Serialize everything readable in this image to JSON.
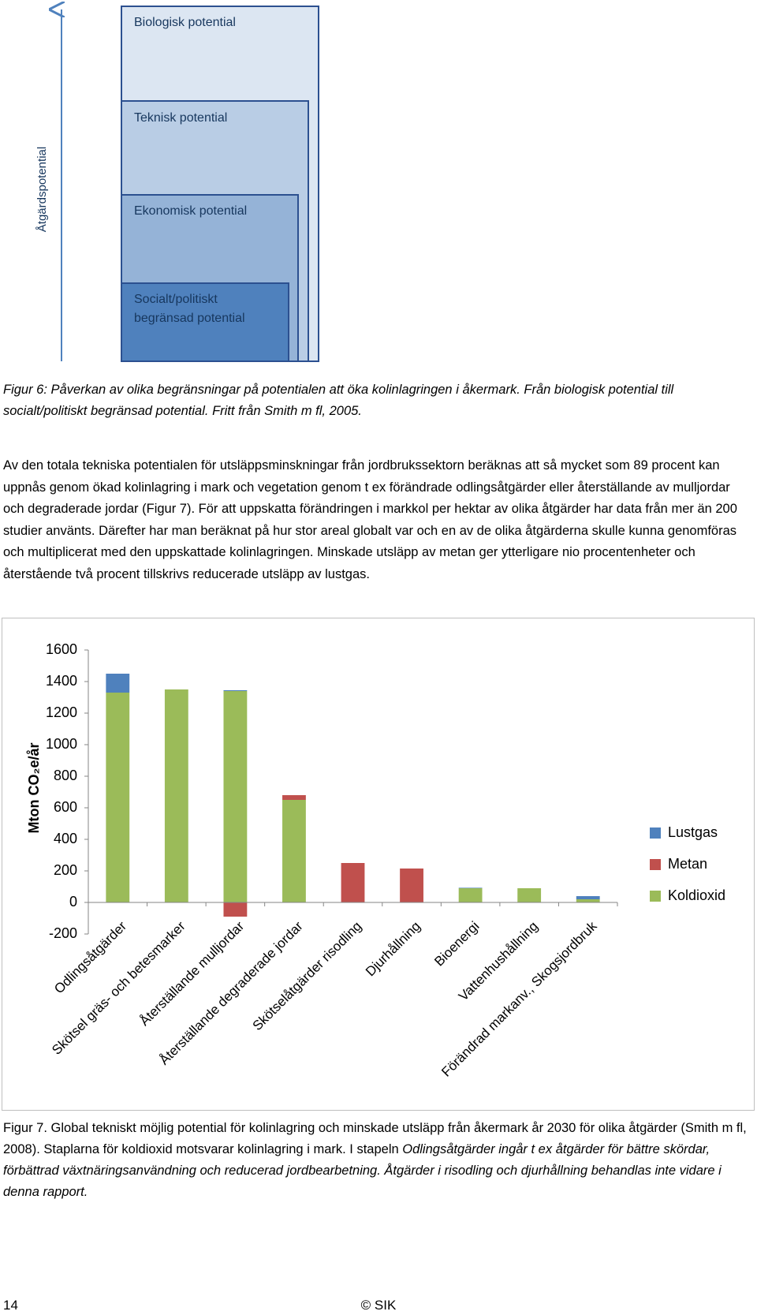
{
  "diagram": {
    "axis_label": "Åtgärdspotential",
    "boxes": [
      {
        "lines": [
          "Biologisk potential"
        ]
      },
      {
        "lines": [
          "Teknisk potential"
        ]
      },
      {
        "lines": [
          "Ekonomisk potential"
        ]
      },
      {
        "lines": [
          "Socialt/politiskt",
          "begränsad potential"
        ]
      }
    ]
  },
  "figure6_caption": "Figur 6: Påverkan av olika begränsningar på potentialen att öka kolinlagringen i åkermark. Från biologisk potential till socialt/politiskt begränsad potential. Fritt från Smith m fl, 2005.",
  "paragraph": "Av den totala tekniska potentialen för utsläppsminskningar från jordbrukssektorn beräknas att så mycket som 89 procent kan uppnås genom ökad kolinlagring i mark och vegetation genom t ex förändrade odlingsåtgärder eller återställande av mulljordar och degraderade jordar (Figur 7). För att uppskatta förändringen i markkol per hektar av olika åtgärder har data från mer än 200 studier använts. Därefter har man beräknat på hur stor areal globalt var och en av de olika åtgärderna skulle kunna genomföras och multiplicerat med den uppskattade kolinlagringen. Minskade utsläpp av metan ger ytterligare nio procentenheter och återstående två procent tillskrivs reducerade utsläpp av lustgas.",
  "chart_data": {
    "type": "stacked_bar",
    "y_label": "Mton CO₂e/år",
    "categories": [
      "Odlingsåtgärder",
      "Skötsel gräs- och betesmarker",
      "Återställande mulljordar",
      "Återställande degraderade jordar",
      "Skötselåtgärder risodling",
      "Djurhållning",
      "Bioenergi",
      "Vattenhushållning",
      "Förändrad markanv., Skogsjordbruk"
    ],
    "series": [
      {
        "name": "Koldioxid",
        "color": "#9bbb59",
        "values": [
          1330,
          1350,
          1340,
          650,
          0,
          0,
          90,
          90,
          20
        ]
      },
      {
        "name": "Metan",
        "color": "#c0504d",
        "values": [
          0,
          0,
          -90,
          30,
          250,
          215,
          0,
          0,
          0
        ]
      },
      {
        "name": "Lustgas",
        "color": "#4f81bd",
        "values": [
          120,
          0,
          5,
          0,
          0,
          0,
          3,
          0,
          20
        ]
      }
    ],
    "ylim": [
      -200,
      1600
    ],
    "yticks": [
      -200,
      0,
      200,
      400,
      600,
      800,
      1000,
      1200,
      1400,
      1600
    ],
    "grid": false,
    "legend": "right"
  },
  "figure7_caption": [
    "Figur 7. Global tekniskt möjlig potential för kolinlagring och minskade utsläpp från åkermark år 2030 för olika åtgärder (Smith m fl, 2008). Staplarna för koldioxid motsvarar kolinlagring i mark. I stapeln",
    "Odlingsåtgärder ingår t ex åtgärder för bättre skördar, förbättrad växtnäringsanvändning och reducerad jordbearbetning. Åtgärder i risodling och djurhållning behandlas inte vidare i denna rapport."
  ],
  "footer": {
    "page": "14",
    "center": "© SIK"
  }
}
